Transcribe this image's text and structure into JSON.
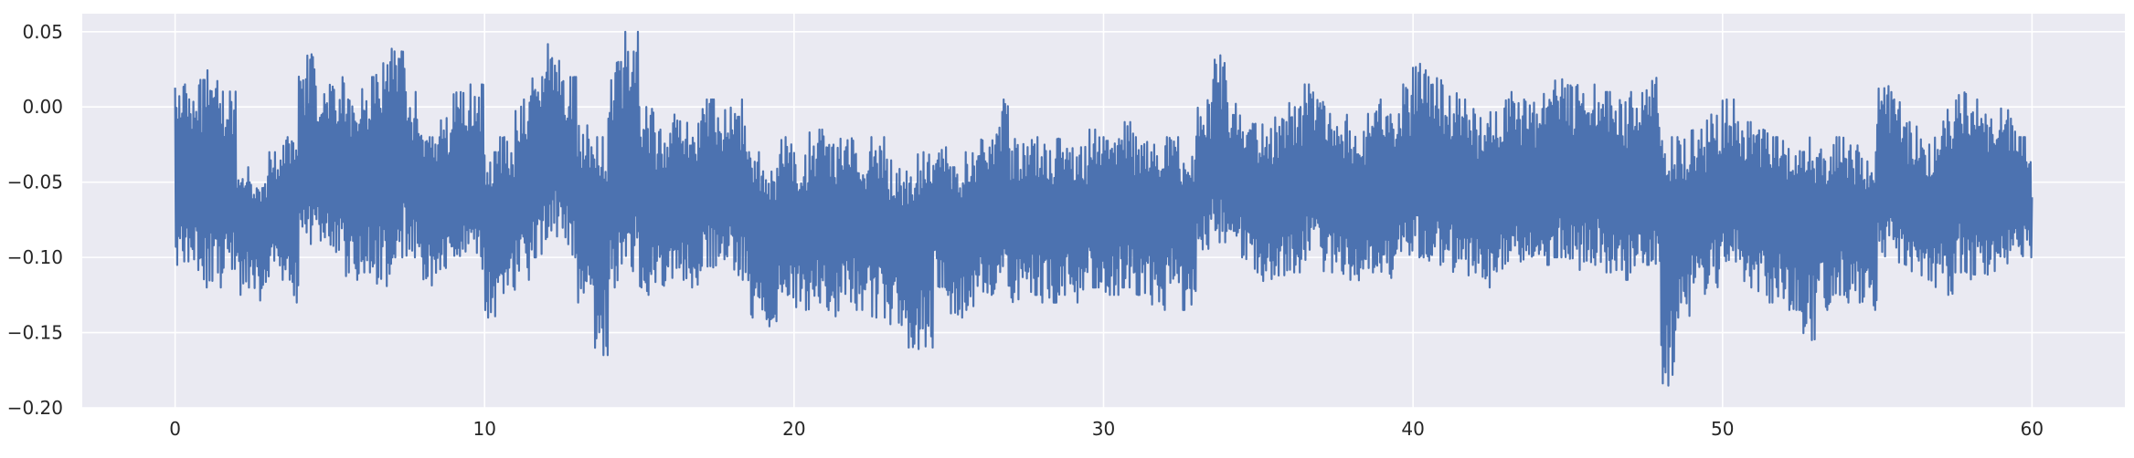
{
  "chart_data": {
    "type": "line",
    "title": "",
    "xlabel": "",
    "ylabel": "",
    "xlim": [
      -3,
      63
    ],
    "ylim": [
      -0.2,
      0.062
    ],
    "grid": true,
    "x_ticks": [
      0,
      10,
      20,
      30,
      40,
      50,
      60
    ],
    "x_tick_labels": [
      "0",
      "10",
      "20",
      "30",
      "40",
      "50",
      "60"
    ],
    "y_ticks": [
      -0.2,
      -0.15,
      -0.1,
      -0.05,
      0.0,
      0.05
    ],
    "y_tick_labels": [
      "−0.20",
      "−0.15",
      "−0.10",
      "−0.05",
      "0.00",
      "0.05"
    ],
    "series": [
      {
        "color": "#4c72b0",
        "sampling_note": "dense signal, envelope per time segment",
        "segments": [
          {
            "x0": 0,
            "x1": 0.5,
            "center": -0.055,
            "high": 0.015,
            "low": -0.105
          },
          {
            "x0": 0.5,
            "x1": 1.0,
            "center": -0.05,
            "high": 0.018,
            "low": -0.115
          },
          {
            "x0": 1.0,
            "x1": 1.5,
            "center": -0.045,
            "high": 0.025,
            "low": -0.12
          },
          {
            "x0": 1.5,
            "x1": 2.0,
            "center": -0.05,
            "high": 0.015,
            "low": -0.11
          },
          {
            "x0": 2.0,
            "x1": 2.5,
            "center": -0.07,
            "high": -0.04,
            "low": -0.125
          },
          {
            "x0": 2.5,
            "x1": 3.0,
            "center": -0.075,
            "high": -0.05,
            "low": -0.13
          },
          {
            "x0": 3.0,
            "x1": 3.5,
            "center": -0.065,
            "high": -0.03,
            "low": -0.115
          },
          {
            "x0": 3.5,
            "x1": 4.0,
            "center": -0.06,
            "high": -0.02,
            "low": -0.13
          },
          {
            "x0": 4.0,
            "x1": 4.5,
            "center": -0.04,
            "high": 0.035,
            "low": -0.095
          },
          {
            "x0": 4.5,
            "x1": 5.0,
            "center": -0.04,
            "high": 0.025,
            "low": -0.09
          },
          {
            "x0": 5.0,
            "x1": 5.5,
            "center": -0.045,
            "high": 0.02,
            "low": -0.1
          },
          {
            "x0": 5.5,
            "x1": 6.0,
            "center": -0.055,
            "high": 0.005,
            "low": -0.115
          },
          {
            "x0": 6.0,
            "x1": 6.5,
            "center": -0.045,
            "high": 0.02,
            "low": -0.11
          },
          {
            "x0": 6.5,
            "x1": 7.0,
            "center": -0.04,
            "high": 0.03,
            "low": -0.12
          },
          {
            "x0": 7.0,
            "x1": 7.5,
            "center": -0.03,
            "high": 0.04,
            "low": -0.1
          },
          {
            "x0": 7.5,
            "x1": 8.0,
            "center": -0.05,
            "high": 0.01,
            "low": -0.1
          },
          {
            "x0": 8.0,
            "x1": 8.5,
            "center": -0.065,
            "high": -0.02,
            "low": -0.12
          },
          {
            "x0": 8.5,
            "x1": 9.0,
            "center": -0.06,
            "high": -0.005,
            "low": -0.11
          },
          {
            "x0": 9.0,
            "x1": 9.5,
            "center": -0.045,
            "high": 0.01,
            "low": -0.1
          },
          {
            "x0": 9.5,
            "x1": 10.0,
            "center": -0.055,
            "high": 0.015,
            "low": -0.11
          },
          {
            "x0": 10.0,
            "x1": 10.5,
            "center": -0.08,
            "high": -0.03,
            "low": -0.14
          },
          {
            "x0": 10.5,
            "x1": 11.0,
            "center": -0.07,
            "high": -0.02,
            "low": -0.125
          },
          {
            "x0": 11.0,
            "x1": 11.5,
            "center": -0.055,
            "high": 0.005,
            "low": -0.115
          },
          {
            "x0": 11.5,
            "x1": 12.0,
            "center": -0.035,
            "high": 0.02,
            "low": -0.1
          },
          {
            "x0": 12.0,
            "x1": 12.5,
            "center": -0.025,
            "high": 0.045,
            "low": -0.09
          },
          {
            "x0": 12.5,
            "x1": 13.0,
            "center": -0.035,
            "high": 0.02,
            "low": -0.1
          },
          {
            "x0": 13.0,
            "x1": 13.5,
            "center": -0.07,
            "high": -0.01,
            "low": -0.13
          },
          {
            "x0": 13.5,
            "x1": 14.0,
            "center": -0.075,
            "high": -0.02,
            "low": -0.165
          },
          {
            "x0": 14.0,
            "x1": 14.5,
            "center": -0.05,
            "high": 0.03,
            "low": -0.12
          },
          {
            "x0": 14.5,
            "x1": 15.0,
            "center": -0.04,
            "high": 0.05,
            "low": -0.11
          },
          {
            "x0": 15.0,
            "x1": 15.5,
            "center": -0.06,
            "high": 0.0,
            "low": -0.125
          },
          {
            "x0": 15.5,
            "x1": 16.0,
            "center": -0.065,
            "high": -0.015,
            "low": -0.12
          },
          {
            "x0": 16.0,
            "x1": 16.5,
            "center": -0.055,
            "high": -0.005,
            "low": -0.115
          },
          {
            "x0": 16.5,
            "x1": 17.0,
            "center": -0.06,
            "high": -0.01,
            "low": -0.12
          },
          {
            "x0": 17.0,
            "x1": 17.5,
            "center": -0.05,
            "high": 0.005,
            "low": -0.11
          },
          {
            "x0": 17.5,
            "x1": 18.0,
            "center": -0.055,
            "high": 0.0,
            "low": -0.105
          },
          {
            "x0": 18.0,
            "x1": 18.5,
            "center": -0.06,
            "high": 0.005,
            "low": -0.115
          },
          {
            "x0": 18.5,
            "x1": 19.0,
            "center": -0.085,
            "high": -0.03,
            "low": -0.14
          },
          {
            "x0": 19.0,
            "x1": 19.5,
            "center": -0.09,
            "high": -0.04,
            "low": -0.155
          },
          {
            "x0": 19.5,
            "x1": 20.0,
            "center": -0.075,
            "high": -0.02,
            "low": -0.13
          },
          {
            "x0": 20.0,
            "x1": 20.5,
            "center": -0.08,
            "high": -0.03,
            "low": -0.135
          },
          {
            "x0": 20.5,
            "x1": 21.0,
            "center": -0.075,
            "high": -0.015,
            "low": -0.13
          },
          {
            "x0": 21.0,
            "x1": 21.5,
            "center": -0.08,
            "high": -0.025,
            "low": -0.14
          },
          {
            "x0": 21.5,
            "x1": 22.0,
            "center": -0.075,
            "high": -0.02,
            "low": -0.13
          },
          {
            "x0": 22.0,
            "x1": 22.5,
            "center": -0.08,
            "high": -0.03,
            "low": -0.135
          },
          {
            "x0": 22.5,
            "x1": 23.0,
            "center": -0.075,
            "high": -0.02,
            "low": -0.14
          },
          {
            "x0": 23.0,
            "x1": 23.5,
            "center": -0.085,
            "high": -0.035,
            "low": -0.145
          },
          {
            "x0": 23.5,
            "x1": 24.0,
            "center": -0.09,
            "high": -0.04,
            "low": -0.16
          },
          {
            "x0": 24.0,
            "x1": 24.5,
            "center": -0.085,
            "high": -0.03,
            "low": -0.165
          },
          {
            "x0": 24.5,
            "x1": 25.0,
            "center": -0.07,
            "high": -0.02,
            "low": -0.125
          },
          {
            "x0": 25.0,
            "x1": 25.5,
            "center": -0.085,
            "high": -0.04,
            "low": -0.14
          },
          {
            "x0": 25.5,
            "x1": 26.0,
            "center": -0.08,
            "high": -0.03,
            "low": -0.135
          },
          {
            "x0": 26.0,
            "x1": 26.5,
            "center": -0.07,
            "high": -0.02,
            "low": -0.125
          },
          {
            "x0": 26.5,
            "x1": 27.0,
            "center": -0.065,
            "high": 0.005,
            "low": -0.12
          },
          {
            "x0": 27.0,
            "x1": 27.5,
            "center": -0.075,
            "high": -0.02,
            "low": -0.13
          },
          {
            "x0": 27.5,
            "x1": 28.0,
            "center": -0.07,
            "high": -0.02,
            "low": -0.125
          },
          {
            "x0": 28.0,
            "x1": 28.5,
            "center": -0.075,
            "high": -0.025,
            "low": -0.13
          },
          {
            "x0": 28.5,
            "x1": 29.0,
            "center": -0.07,
            "high": -0.02,
            "low": -0.125
          },
          {
            "x0": 29.0,
            "x1": 29.5,
            "center": -0.075,
            "high": -0.025,
            "low": -0.13
          },
          {
            "x0": 29.5,
            "x1": 30.0,
            "center": -0.065,
            "high": -0.015,
            "low": -0.12
          },
          {
            "x0": 30.0,
            "x1": 30.5,
            "center": -0.07,
            "high": -0.02,
            "low": -0.125
          },
          {
            "x0": 30.5,
            "x1": 31.0,
            "center": -0.065,
            "high": -0.01,
            "low": -0.12
          },
          {
            "x0": 31.0,
            "x1": 31.5,
            "center": -0.07,
            "high": -0.02,
            "low": -0.125
          },
          {
            "x0": 31.5,
            "x1": 32.0,
            "center": -0.075,
            "high": -0.025,
            "low": -0.135
          },
          {
            "x0": 32.0,
            "x1": 32.5,
            "center": -0.07,
            "high": -0.02,
            "low": -0.12
          },
          {
            "x0": 32.5,
            "x1": 33.0,
            "center": -0.075,
            "high": -0.03,
            "low": -0.135
          },
          {
            "x0": 33.0,
            "x1": 33.5,
            "center": -0.045,
            "high": 0.005,
            "low": -0.095
          },
          {
            "x0": 33.5,
            "x1": 34.0,
            "center": -0.035,
            "high": 0.035,
            "low": -0.09
          },
          {
            "x0": 34.0,
            "x1": 34.5,
            "center": -0.05,
            "high": 0.005,
            "low": -0.1
          },
          {
            "x0": 34.5,
            "x1": 35.0,
            "center": -0.055,
            "high": 0.0,
            "low": -0.11
          },
          {
            "x0": 35.0,
            "x1": 35.5,
            "center": -0.065,
            "high": -0.01,
            "low": -0.12
          },
          {
            "x0": 35.5,
            "x1": 36.0,
            "center": -0.06,
            "high": -0.005,
            "low": -0.115
          },
          {
            "x0": 36.0,
            "x1": 36.5,
            "center": -0.055,
            "high": 0.005,
            "low": -0.11
          },
          {
            "x0": 36.5,
            "x1": 37.0,
            "center": -0.045,
            "high": 0.015,
            "low": -0.105
          },
          {
            "x0": 37.0,
            "x1": 37.5,
            "center": -0.055,
            "high": 0.005,
            "low": -0.11
          },
          {
            "x0": 37.5,
            "x1": 38.0,
            "center": -0.06,
            "high": -0.005,
            "low": -0.115
          },
          {
            "x0": 38.0,
            "x1": 38.5,
            "center": -0.065,
            "high": -0.01,
            "low": -0.12
          },
          {
            "x0": 38.5,
            "x1": 39.0,
            "center": -0.055,
            "high": 0.005,
            "low": -0.11
          },
          {
            "x0": 39.0,
            "x1": 39.5,
            "center": -0.06,
            "high": -0.005,
            "low": -0.115
          },
          {
            "x0": 39.5,
            "x1": 40.0,
            "center": -0.05,
            "high": 0.015,
            "low": -0.105
          },
          {
            "x0": 40.0,
            "x1": 40.5,
            "center": -0.04,
            "high": 0.03,
            "low": -0.1
          },
          {
            "x0": 40.5,
            "x1": 41.0,
            "center": -0.045,
            "high": 0.02,
            "low": -0.105
          },
          {
            "x0": 41.0,
            "x1": 41.5,
            "center": -0.05,
            "high": 0.01,
            "low": -0.11
          },
          {
            "x0": 41.5,
            "x1": 42.0,
            "center": -0.055,
            "high": 0.005,
            "low": -0.115
          },
          {
            "x0": 42.0,
            "x1": 42.5,
            "center": -0.06,
            "high": -0.005,
            "low": -0.12
          },
          {
            "x0": 42.5,
            "x1": 43.0,
            "center": -0.055,
            "high": 0.0,
            "low": -0.11
          },
          {
            "x0": 43.0,
            "x1": 43.5,
            "center": -0.05,
            "high": 0.01,
            "low": -0.105
          },
          {
            "x0": 43.5,
            "x1": 44.0,
            "center": -0.055,
            "high": 0.005,
            "low": -0.11
          },
          {
            "x0": 44.0,
            "x1": 44.5,
            "center": -0.05,
            "high": 0.015,
            "low": -0.105
          },
          {
            "x0": 44.5,
            "x1": 45.0,
            "center": -0.045,
            "high": 0.02,
            "low": -0.1
          },
          {
            "x0": 45.0,
            "x1": 45.5,
            "center": -0.05,
            "high": 0.015,
            "low": -0.11
          },
          {
            "x0": 45.5,
            "x1": 46.0,
            "center": -0.045,
            "high": 0.025,
            "low": -0.105
          },
          {
            "x0": 46.0,
            "x1": 46.5,
            "center": -0.05,
            "high": 0.01,
            "low": -0.11
          },
          {
            "x0": 46.5,
            "x1": 47.0,
            "center": -0.055,
            "high": 0.005,
            "low": -0.115
          },
          {
            "x0": 47.0,
            "x1": 47.5,
            "center": -0.05,
            "high": 0.01,
            "low": -0.11
          },
          {
            "x0": 47.5,
            "x1": 48.0,
            "center": -0.045,
            "high": 0.02,
            "low": -0.105
          },
          {
            "x0": 48.0,
            "x1": 48.5,
            "center": -0.08,
            "high": -0.02,
            "low": -0.19
          },
          {
            "x0": 48.5,
            "x1": 49.0,
            "center": -0.075,
            "high": -0.02,
            "low": -0.14
          },
          {
            "x0": 49.0,
            "x1": 49.5,
            "center": -0.07,
            "high": -0.015,
            "low": -0.13
          },
          {
            "x0": 49.5,
            "x1": 50.0,
            "center": -0.06,
            "high": -0.005,
            "low": -0.12
          },
          {
            "x0": 50.0,
            "x1": 50.5,
            "center": -0.055,
            "high": 0.005,
            "low": -0.11
          },
          {
            "x0": 50.5,
            "x1": 51.0,
            "center": -0.06,
            "high": -0.01,
            "low": -0.12
          },
          {
            "x0": 51.0,
            "x1": 51.5,
            "center": -0.065,
            "high": -0.015,
            "low": -0.125
          },
          {
            "x0": 51.5,
            "x1": 52.0,
            "center": -0.07,
            "high": -0.02,
            "low": -0.13
          },
          {
            "x0": 52.0,
            "x1": 52.5,
            "center": -0.075,
            "high": -0.025,
            "low": -0.135
          },
          {
            "x0": 52.5,
            "x1": 53.0,
            "center": -0.07,
            "high": -0.02,
            "low": -0.155
          },
          {
            "x0": 53.0,
            "x1": 53.5,
            "center": -0.075,
            "high": -0.025,
            "low": -0.135
          },
          {
            "x0": 53.5,
            "x1": 54.0,
            "center": -0.07,
            "high": -0.02,
            "low": -0.125
          },
          {
            "x0": 54.0,
            "x1": 54.5,
            "center": -0.075,
            "high": -0.025,
            "low": -0.13
          },
          {
            "x0": 54.5,
            "x1": 55.0,
            "center": -0.08,
            "high": -0.03,
            "low": -0.135
          },
          {
            "x0": 55.0,
            "x1": 55.5,
            "center": -0.05,
            "high": 0.015,
            "low": -0.1
          },
          {
            "x0": 55.5,
            "x1": 56.0,
            "center": -0.055,
            "high": 0.005,
            "low": -0.105
          },
          {
            "x0": 56.0,
            "x1": 56.5,
            "center": -0.065,
            "high": -0.01,
            "low": -0.115
          },
          {
            "x0": 56.5,
            "x1": 57.0,
            "center": -0.07,
            "high": -0.02,
            "low": -0.12
          },
          {
            "x0": 57.0,
            "x1": 57.5,
            "center": -0.06,
            "high": 0.0,
            "low": -0.125
          },
          {
            "x0": 57.5,
            "x1": 58.0,
            "center": -0.05,
            "high": 0.01,
            "low": -0.11
          },
          {
            "x0": 58.0,
            "x1": 58.5,
            "center": -0.055,
            "high": 0.005,
            "low": -0.115
          },
          {
            "x0": 58.5,
            "x1": 59.0,
            "center": -0.06,
            "high": -0.005,
            "low": -0.115
          },
          {
            "x0": 59.0,
            "x1": 59.5,
            "center": -0.055,
            "high": 0.0,
            "low": -0.11
          },
          {
            "x0": 59.5,
            "x1": 60.0,
            "center": -0.06,
            "high": -0.02,
            "low": -0.1
          }
        ]
      }
    ]
  }
}
